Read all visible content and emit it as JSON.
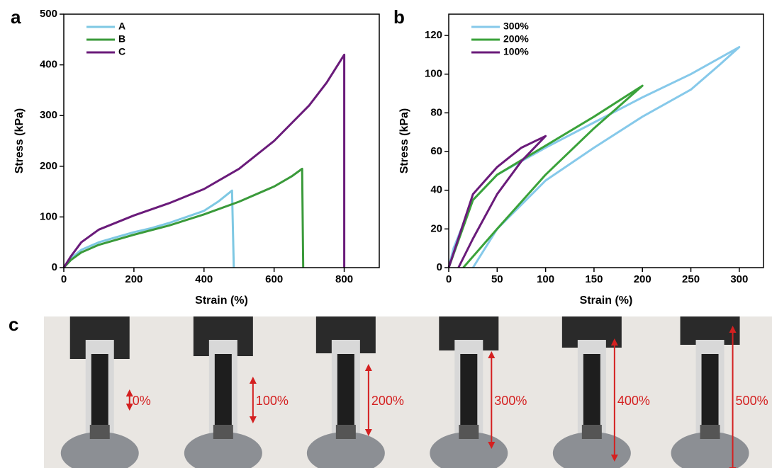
{
  "chart_data": [
    {
      "type": "line",
      "panel": "a",
      "xlabel": "Strain (%)",
      "ylabel": "Stress (kPa)",
      "xlim": [
        0,
        900
      ],
      "xticks": [
        0,
        200,
        400,
        600,
        800
      ],
      "ylim": [
        0,
        500
      ],
      "yticks": [
        0,
        100,
        200,
        300,
        400,
        500
      ],
      "legend": "upper left",
      "series": [
        {
          "name": "A",
          "color": "#7ec8e3",
          "x": [
            0,
            20,
            50,
            100,
            150,
            200,
            250,
            300,
            350,
            400,
            440,
            480,
            485
          ],
          "values": [
            0,
            18,
            35,
            50,
            60,
            70,
            78,
            88,
            100,
            112,
            130,
            152,
            0
          ]
        },
        {
          "name": "B",
          "color": "#3a9a3a",
          "x": [
            0,
            20,
            50,
            100,
            200,
            300,
            400,
            500,
            600,
            650,
            680,
            683
          ],
          "values": [
            0,
            15,
            30,
            45,
            65,
            83,
            105,
            130,
            160,
            180,
            195,
            0
          ]
        },
        {
          "name": "C",
          "color": "#6a1b7a",
          "x": [
            0,
            20,
            50,
            100,
            200,
            300,
            400,
            500,
            600,
            700,
            750,
            800,
            800
          ],
          "values": [
            0,
            22,
            50,
            75,
            103,
            127,
            155,
            195,
            250,
            320,
            365,
            420,
            0
          ]
        }
      ]
    },
    {
      "type": "line",
      "panel": "b",
      "xlabel": "Strain (%)",
      "ylabel": "Stress (kPa)",
      "xlim": [
        0,
        325
      ],
      "xticks": [
        0,
        50,
        100,
        150,
        200,
        250,
        300
      ],
      "ylim": [
        0,
        131
      ],
      "yticks": [
        0,
        20,
        40,
        60,
        80,
        100,
        120
      ],
      "legend": "upper left",
      "series": [
        {
          "name": "300%",
          "color": "#86c9ea",
          "x": [
            0,
            5,
            25,
            50,
            100,
            150,
            200,
            250,
            300,
            280,
            250,
            200,
            150,
            100,
            50,
            25
          ],
          "values": [
            0,
            10,
            35,
            48,
            62,
            75,
            88,
            100,
            114,
            105,
            92,
            78,
            62,
            45,
            20,
            0
          ]
        },
        {
          "name": "200%",
          "color": "#3aa23a",
          "x": [
            0,
            25,
            50,
            100,
            150,
            200,
            150,
            100,
            50,
            15
          ],
          "values": [
            0,
            35,
            48,
            63,
            78,
            94,
            72,
            48,
            20,
            0
          ]
        },
        {
          "name": "100%",
          "color": "#6a1b7a",
          "x": [
            0,
            25,
            50,
            75,
            100,
            75,
            50,
            25,
            10
          ],
          "values": [
            0,
            38,
            52,
            62,
            68,
            55,
            38,
            15,
            0
          ]
        }
      ]
    }
  ],
  "photo_panel": {
    "panel": "c",
    "labels": [
      "0%",
      "100%",
      "200%",
      "300%",
      "400%",
      "500%"
    ]
  }
}
